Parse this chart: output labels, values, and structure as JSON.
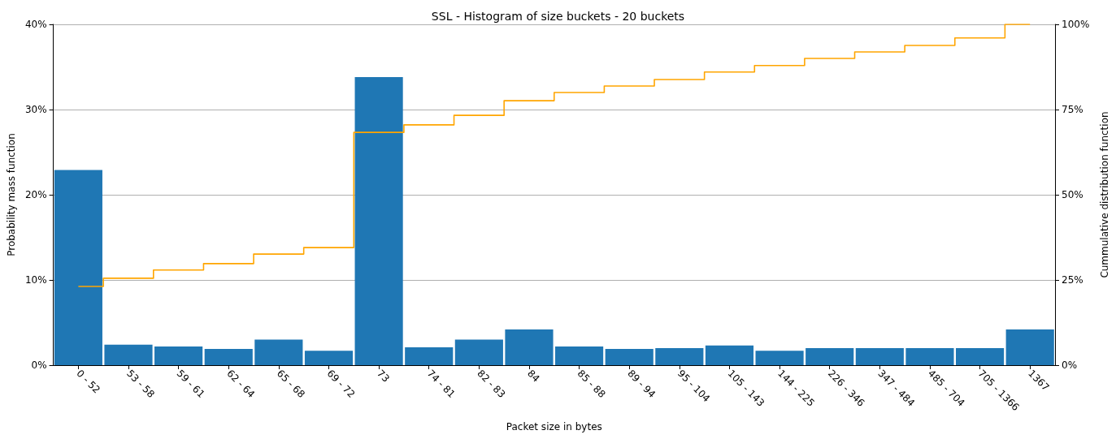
{
  "chart_data": {
    "type": "bar",
    "title": "SSL - Histogram of size buckets - 20 buckets",
    "xlabel": "Packet size in bytes",
    "ylabel": "Probability mass function",
    "y2label": "Cummulative distribution function",
    "categories": [
      "0 - 52",
      "53 - 58",
      "59 - 61",
      "62 - 64",
      "65 - 68",
      "69 - 72",
      "73",
      "74 - 81",
      "82 - 83",
      "84",
      "85 - 88",
      "89 - 94",
      "95 - 104",
      "105 - 143",
      "144 - 225",
      "226 - 346",
      "347 - 484",
      "485 - 704",
      "705 - 1366",
      "1367"
    ],
    "series": [
      {
        "color": "#1f77b4",
        "values": [
          22.9,
          2.4,
          2.2,
          1.9,
          3.0,
          1.7,
          33.8,
          2.1,
          3.0,
          4.2,
          2.2,
          1.9,
          2.0,
          2.3,
          1.7,
          2.0,
          2.0,
          2.0,
          2.0,
          4.2
        ]
      },
      {
        "type": "step",
        "axis": "y2",
        "color": "#ffa500",
        "values": [
          23.1,
          25.5,
          27.9,
          29.8,
          32.6,
          34.5,
          68.3,
          70.5,
          73.3,
          77.6,
          80.0,
          81.9,
          83.8,
          86.0,
          87.9,
          90.0,
          91.9,
          93.8,
          96.0,
          100
        ]
      }
    ],
    "ylim": [
      0,
      40
    ],
    "yticks": [
      {
        "value": 0,
        "label": "0%"
      },
      {
        "value": 10,
        "label": "10%"
      },
      {
        "value": 20,
        "label": "20%"
      },
      {
        "value": 30,
        "label": "30%"
      },
      {
        "value": 40,
        "label": "40%"
      }
    ],
    "y2lim": [
      0,
      100
    ],
    "y2ticks": [
      {
        "value": 0,
        "label": "0%"
      },
      {
        "value": 25,
        "label": "25%"
      },
      {
        "value": 50,
        "label": "50%"
      },
      {
        "value": 75,
        "label": "75%"
      },
      {
        "value": 100,
        "label": "100%"
      }
    ],
    "grid": "y",
    "marker": "none",
    "line_style": "solid"
  }
}
